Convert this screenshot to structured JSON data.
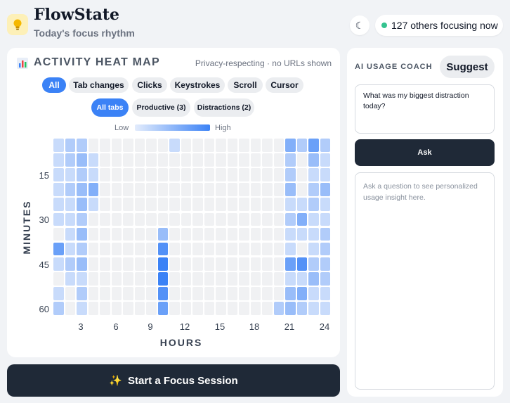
{
  "header": {
    "app_title": "FlowState",
    "subtitle": "Today's focus rhythm",
    "logo_icon": "lightbulb-icon",
    "theme_icon": "moon-icon",
    "theme_glyph": "☾",
    "online_text": "127 others focusing now",
    "online_status_color": "#34c38f"
  },
  "heatmap": {
    "title": "ACTIVITY HEAT MAP",
    "title_icon": "bar-chart-icon",
    "privacy_note": "Privacy-respecting · no URLs shown",
    "filters": [
      {
        "label": "All",
        "active": true
      },
      {
        "label": "Tab changes",
        "active": false
      },
      {
        "label": "Clicks",
        "active": false
      },
      {
        "label": "Keystrokes",
        "active": false
      },
      {
        "label": "Scroll",
        "active": false
      },
      {
        "label": "Cursor",
        "active": false
      }
    ],
    "tab_filters": [
      {
        "label": "All tabs",
        "active": true
      },
      {
        "label": "Productive (3)",
        "active": false
      },
      {
        "label": "Distractions (2)",
        "active": false
      }
    ],
    "legend_low": "Low",
    "legend_high": "High",
    "accent_color": "#3b82f6"
  },
  "chart_data": {
    "type": "heatmap",
    "xlabel": "HOURS",
    "ylabel": "MINUTES",
    "x_ticks": [
      "3",
      "6",
      "9",
      "12",
      "15",
      "18",
      "21",
      "24"
    ],
    "y_ticks": [
      "15",
      "30",
      "45",
      "60"
    ],
    "columns": 24,
    "rows": 12,
    "values": [
      [
        1,
        2,
        2,
        0,
        0,
        0,
        0,
        0,
        0,
        0,
        1,
        0,
        0,
        0,
        0,
        0,
        0,
        0,
        0,
        0,
        4,
        2,
        5,
        2
      ],
      [
        1,
        2,
        3,
        1,
        0,
        0,
        0,
        0,
        0,
        0,
        0,
        0,
        0,
        0,
        0,
        0,
        0,
        0,
        0,
        0,
        2,
        0,
        3,
        1
      ],
      [
        1,
        1,
        2,
        1,
        0,
        0,
        0,
        0,
        0,
        0,
        0,
        0,
        0,
        0,
        0,
        0,
        0,
        0,
        0,
        0,
        2,
        0,
        1,
        1
      ],
      [
        1,
        2,
        3,
        4,
        0,
        0,
        0,
        0,
        0,
        0,
        0,
        0,
        0,
        0,
        0,
        0,
        0,
        0,
        0,
        0,
        3,
        0,
        2,
        3
      ],
      [
        1,
        1,
        3,
        1,
        0,
        0,
        0,
        0,
        0,
        0,
        0,
        0,
        0,
        0,
        0,
        0,
        0,
        0,
        0,
        0,
        1,
        1,
        2,
        1
      ],
      [
        1,
        1,
        2,
        0,
        0,
        0,
        0,
        0,
        0,
        0,
        0,
        0,
        0,
        0,
        0,
        0,
        0,
        0,
        0,
        0,
        2,
        4,
        1,
        1
      ],
      [
        0,
        1,
        3,
        0,
        0,
        0,
        0,
        0,
        0,
        3,
        0,
        0,
        0,
        0,
        0,
        0,
        0,
        0,
        0,
        0,
        1,
        1,
        1,
        2
      ],
      [
        5,
        1,
        2,
        0,
        0,
        0,
        0,
        0,
        0,
        6,
        0,
        0,
        0,
        0,
        0,
        0,
        0,
        0,
        0,
        0,
        1,
        0,
        1,
        2
      ],
      [
        1,
        2,
        3,
        0,
        0,
        0,
        0,
        0,
        0,
        7,
        0,
        0,
        0,
        0,
        0,
        0,
        0,
        0,
        0,
        0,
        5,
        6,
        2,
        2
      ],
      [
        0,
        1,
        1,
        0,
        0,
        0,
        0,
        0,
        0,
        7,
        0,
        0,
        0,
        0,
        0,
        0,
        0,
        0,
        0,
        0,
        1,
        1,
        3,
        2
      ],
      [
        1,
        0,
        2,
        0,
        0,
        0,
        0,
        0,
        0,
        6,
        0,
        0,
        0,
        0,
        0,
        0,
        0,
        0,
        0,
        0,
        3,
        4,
        1,
        1
      ],
      [
        2,
        0,
        1,
        0,
        0,
        0,
        0,
        0,
        0,
        5,
        0,
        0,
        0,
        0,
        0,
        0,
        0,
        0,
        0,
        2,
        3,
        2,
        1,
        1
      ]
    ],
    "max_value": 7
  },
  "coach": {
    "title": "AI USAGE COACH",
    "suggest_label": "Suggest",
    "question_value": "What was my biggest distraction today?",
    "ask_label": "Ask",
    "answer_placeholder": "Ask a question to see personalized usage insight here."
  },
  "footer": {
    "start_label": "Start a Focus Session",
    "start_glyph": "✨"
  }
}
